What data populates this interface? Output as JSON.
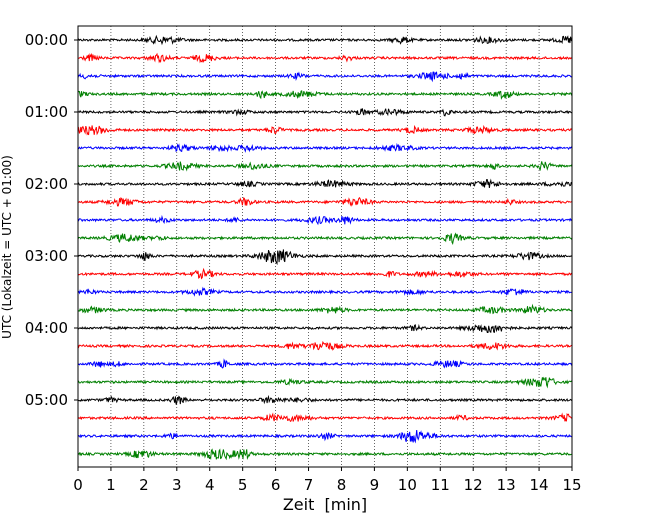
{
  "chart_data": {
    "type": "line",
    "title": "",
    "xlabel": "Zeit  [min]",
    "ylabel": "UTC (Lokalzeit = UTC + 01:00)",
    "xlim": [
      0,
      15
    ],
    "x_ticks": [
      "0",
      "1",
      "2",
      "3",
      "4",
      "5",
      "6",
      "7",
      "8",
      "9",
      "10",
      "11",
      "12",
      "13",
      "14",
      "15"
    ],
    "y_tick_labels": [
      "00:00",
      "01:00",
      "02:00",
      "03:00",
      "04:00",
      "05:00"
    ],
    "grid": "vertical dotted",
    "trace_interval_min": 15,
    "trace_count": 24,
    "trace_colors": [
      "#000000",
      "#ff0000",
      "#0000ff",
      "#008000"
    ]
  }
}
